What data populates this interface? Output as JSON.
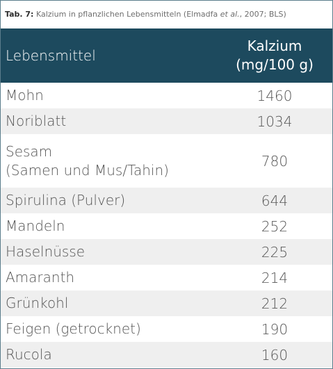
{
  "caption": {
    "label": "Tab. 7:",
    "text_before": " Kalzium in pflanzlichen Lebensmitteln (Elmadfa ",
    "italic": "et al.",
    "text_after": ", 2007; BLS)"
  },
  "header": {
    "col1": "Lebensmittel",
    "col2_line1": "Kalzium",
    "col2_line2": "(mg/100 g)"
  },
  "rows": [
    {
      "food": "Mohn",
      "food_line2": "",
      "value": "1460"
    },
    {
      "food": "Noriblatt",
      "food_line2": "",
      "value": "1034"
    },
    {
      "food": "Sesam",
      "food_line2": "(Samen und Mus/Tahin)",
      "value": "780"
    },
    {
      "food": "Spirulina (Pulver)",
      "food_line2": "",
      "value": "644"
    },
    {
      "food": "Mandeln",
      "food_line2": "",
      "value": "252"
    },
    {
      "food": "Haselnüsse",
      "food_line2": "",
      "value": "225"
    },
    {
      "food": "Amaranth",
      "food_line2": "",
      "value": "214"
    },
    {
      "food": "Grünkohl",
      "food_line2": "",
      "value": "212"
    },
    {
      "food": "Feigen (getrocknet)",
      "food_line2": "",
      "value": "190"
    },
    {
      "food": "Rucola",
      "food_line2": "",
      "value": "160"
    }
  ],
  "colors": {
    "header_bg": "#1d4a5e",
    "stripe_bg": "#efefef",
    "border": "#5b7d8c"
  }
}
